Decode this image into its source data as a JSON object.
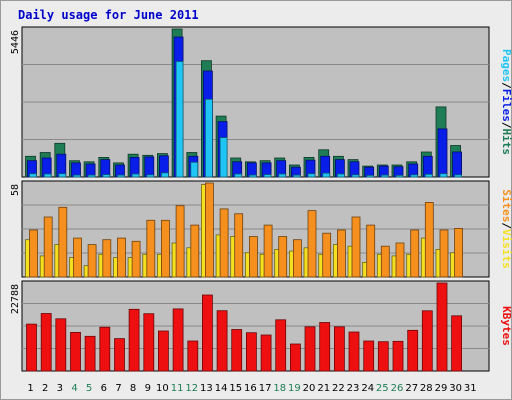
{
  "title": "Daily usage for June 2011",
  "colors": {
    "hits": "#1e7d55",
    "files": "#0a1eea",
    "pages": "#1ec5f5",
    "visits": "#f5e020",
    "sites": "#f5901e",
    "kbytes": "#ee1010",
    "weekend_label": "#1e7d55",
    "weekday_label": "#000000",
    "panel_bg": "#c0c0c0"
  },
  "right_labels": {
    "top": [
      "Pages",
      "/",
      "Files",
      "/",
      "Hits"
    ],
    "mid": [
      "Sites",
      "/",
      "Visits"
    ],
    "bottom": [
      "KBytes"
    ]
  },
  "chart_data": [
    {
      "type": "bar",
      "panel": "top",
      "categories": [
        "1",
        "2",
        "3",
        "4",
        "5",
        "6",
        "7",
        "8",
        "9",
        "10",
        "11",
        "12",
        "13",
        "14",
        "15",
        "16",
        "17",
        "18",
        "19",
        "20",
        "21",
        "22",
        "23",
        "24",
        "25",
        "26",
        "27",
        "28",
        "29",
        "30",
        "31"
      ],
      "ymax_label": "5446",
      "ylim": [
        0,
        5446
      ],
      "weekend_days": [
        "4",
        "5",
        "11",
        "12",
        "18",
        "19",
        "25",
        "26"
      ],
      "series": [
        {
          "name": "Hits",
          "values": [
            760,
            900,
            1240,
            600,
            560,
            720,
            520,
            840,
            800,
            860,
            5446,
            900,
            4280,
            2240,
            700,
            560,
            600,
            700,
            440,
            720,
            1000,
            760,
            640,
            400,
            440,
            440,
            560,
            920,
            2580,
            1160,
            0
          ]
        },
        {
          "name": "Files",
          "values": [
            600,
            700,
            840,
            520,
            480,
            640,
            440,
            720,
            740,
            780,
            5150,
            760,
            3900,
            2040,
            560,
            520,
            520,
            600,
            360,
            620,
            760,
            640,
            560,
            360,
            400,
            380,
            480,
            760,
            1770,
            920,
            0
          ]
        },
        {
          "name": "Pages",
          "values": [
            120,
            110,
            120,
            70,
            70,
            90,
            70,
            110,
            80,
            150,
            4250,
            540,
            2860,
            1450,
            110,
            70,
            90,
            110,
            70,
            120,
            140,
            110,
            80,
            60,
            70,
            60,
            80,
            100,
            120,
            80,
            0
          ]
        }
      ]
    },
    {
      "type": "bar",
      "panel": "middle",
      "categories": [
        "1",
        "2",
        "3",
        "4",
        "5",
        "6",
        "7",
        "8",
        "9",
        "10",
        "11",
        "12",
        "13",
        "14",
        "15",
        "16",
        "17",
        "18",
        "19",
        "20",
        "21",
        "22",
        "23",
        "24",
        "25",
        "26",
        "27",
        "28",
        "29",
        "30",
        "31"
      ],
      "ymax_label": "58",
      "ylim": [
        0,
        58
      ],
      "series": [
        {
          "name": "Visits",
          "values": [
            23,
            13,
            20,
            12,
            7,
            14,
            12,
            12,
            14,
            14,
            21,
            18,
            57,
            26,
            25,
            15,
            14,
            17,
            16,
            18,
            14,
            20,
            19,
            9,
            14,
            13,
            14,
            24,
            17,
            15,
            0
          ]
        },
        {
          "name": "Sites",
          "values": [
            29,
            37,
            43,
            24,
            20,
            23,
            24,
            22,
            35,
            35,
            44,
            32,
            58,
            42,
            39,
            25,
            32,
            25,
            23,
            41,
            27,
            29,
            37,
            32,
            19,
            21,
            29,
            46,
            29,
            30,
            0
          ]
        }
      ]
    },
    {
      "type": "bar",
      "panel": "bottom",
      "categories": [
        "1",
        "2",
        "3",
        "4",
        "5",
        "6",
        "7",
        "8",
        "9",
        "10",
        "11",
        "12",
        "13",
        "14",
        "15",
        "16",
        "17",
        "18",
        "19",
        "20",
        "21",
        "22",
        "23",
        "24",
        "25",
        "26",
        "27",
        "28",
        "29",
        "30",
        "31"
      ],
      "ymax_label": "22788",
      "ylim": [
        0,
        22788
      ],
      "series": [
        {
          "name": "KBytes",
          "values": [
            12140,
            14880,
            13510,
            10000,
            8990,
            11350,
            8400,
            15980,
            14850,
            10350,
            16070,
            7760,
            19690,
            15610,
            10740,
            9930,
            9320,
            13270,
            6990,
            11440,
            12550,
            11440,
            10100,
            7760,
            7600,
            7700,
            10550,
            15600,
            22788,
            14290,
            0
          ]
        }
      ]
    }
  ]
}
